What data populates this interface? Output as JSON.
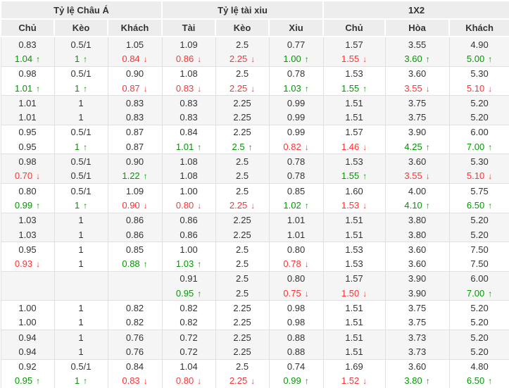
{
  "colors": {
    "up_green": "#009900",
    "down_red": "#ff3333",
    "header_bg": "#ededed",
    "row_alt_bg": "#f5f5f5",
    "border": "#e0e0e0",
    "text": "#333333"
  },
  "table": {
    "groups": [
      {
        "label": "Tỷ lệ Châu Á",
        "columns": [
          "Chủ",
          "Kèo",
          "Khách"
        ]
      },
      {
        "label": "Tỷ lệ tài xiu",
        "columns": [
          "Tài",
          "Kèo",
          "Xiu"
        ]
      },
      {
        "label": "1X2",
        "columns": [
          "Chủ",
          "Hòa",
          "Khách"
        ]
      }
    ],
    "rows": [
      {
        "line1": [
          {
            "v": "0.83"
          },
          {
            "v": "0.5/1"
          },
          {
            "v": "1.05"
          },
          {
            "v": "1.09"
          },
          {
            "v": "2.5"
          },
          {
            "v": "0.77"
          },
          {
            "v": "1.57"
          },
          {
            "v": "3.55"
          },
          {
            "v": "4.90"
          }
        ],
        "line2": [
          {
            "v": "1.04",
            "t": "up"
          },
          {
            "v": "1",
            "t": "up"
          },
          {
            "v": "0.84",
            "t": "down"
          },
          {
            "v": "0.86",
            "t": "down"
          },
          {
            "v": "2.25",
            "t": "down"
          },
          {
            "v": "1.00",
            "t": "up"
          },
          {
            "v": "1.55",
            "t": "down"
          },
          {
            "v": "3.60",
            "t": "up"
          },
          {
            "v": "5.00",
            "t": "up"
          }
        ]
      },
      {
        "line1": [
          {
            "v": "0.98"
          },
          {
            "v": "0.5/1"
          },
          {
            "v": "0.90"
          },
          {
            "v": "1.08"
          },
          {
            "v": "2.5"
          },
          {
            "v": "0.78"
          },
          {
            "v": "1.53"
          },
          {
            "v": "3.60"
          },
          {
            "v": "5.30"
          }
        ],
        "line2": [
          {
            "v": "1.01",
            "t": "up"
          },
          {
            "v": "1",
            "t": "up"
          },
          {
            "v": "0.87",
            "t": "down"
          },
          {
            "v": "0.83",
            "t": "down"
          },
          {
            "v": "2.25",
            "t": "down"
          },
          {
            "v": "1.03",
            "t": "up"
          },
          {
            "v": "1.55",
            "t": "up"
          },
          {
            "v": "3.55",
            "t": "down"
          },
          {
            "v": "5.10",
            "t": "down"
          }
        ]
      },
      {
        "line1": [
          {
            "v": "1.01"
          },
          {
            "v": "1"
          },
          {
            "v": "0.83"
          },
          {
            "v": "0.83"
          },
          {
            "v": "2.25"
          },
          {
            "v": "0.99"
          },
          {
            "v": "1.51"
          },
          {
            "v": "3.75"
          },
          {
            "v": "5.20"
          }
        ],
        "line2": [
          {
            "v": "1.01"
          },
          {
            "v": "1"
          },
          {
            "v": "0.83"
          },
          {
            "v": "0.83"
          },
          {
            "v": "2.25"
          },
          {
            "v": "0.99"
          },
          {
            "v": "1.51"
          },
          {
            "v": "3.75"
          },
          {
            "v": "5.20"
          }
        ]
      },
      {
        "line1": [
          {
            "v": "0.95"
          },
          {
            "v": "0.5/1"
          },
          {
            "v": "0.87"
          },
          {
            "v": "0.84"
          },
          {
            "v": "2.25"
          },
          {
            "v": "0.99"
          },
          {
            "v": "1.57"
          },
          {
            "v": "3.90"
          },
          {
            "v": "6.00"
          }
        ],
        "line2": [
          {
            "v": "0.95"
          },
          {
            "v": "1",
            "t": "up"
          },
          {
            "v": "0.87"
          },
          {
            "v": "1.01",
            "t": "up"
          },
          {
            "v": "2.5",
            "t": "up"
          },
          {
            "v": "0.82",
            "t": "down"
          },
          {
            "v": "1.46",
            "t": "down"
          },
          {
            "v": "4.25",
            "t": "up"
          },
          {
            "v": "7.00",
            "t": "up"
          }
        ]
      },
      {
        "line1": [
          {
            "v": "0.98"
          },
          {
            "v": "0.5/1"
          },
          {
            "v": "0.90"
          },
          {
            "v": "1.08"
          },
          {
            "v": "2.5"
          },
          {
            "v": "0.78"
          },
          {
            "v": "1.53"
          },
          {
            "v": "3.60"
          },
          {
            "v": "5.30"
          }
        ],
        "line2": [
          {
            "v": "0.70",
            "t": "down"
          },
          {
            "v": "0.5/1"
          },
          {
            "v": "1.22",
            "t": "up"
          },
          {
            "v": "1.08"
          },
          {
            "v": "2.5"
          },
          {
            "v": "0.78"
          },
          {
            "v": "1.55",
            "t": "up"
          },
          {
            "v": "3.55",
            "t": "down"
          },
          {
            "v": "5.10",
            "t": "down"
          }
        ]
      },
      {
        "line1": [
          {
            "v": "0.80"
          },
          {
            "v": "0.5/1"
          },
          {
            "v": "1.09"
          },
          {
            "v": "1.00"
          },
          {
            "v": "2.5"
          },
          {
            "v": "0.85"
          },
          {
            "v": "1.60"
          },
          {
            "v": "4.00"
          },
          {
            "v": "5.75"
          }
        ],
        "line2": [
          {
            "v": "0.99",
            "t": "up"
          },
          {
            "v": "1",
            "t": "up"
          },
          {
            "v": "0.90",
            "t": "down"
          },
          {
            "v": "0.80",
            "t": "down"
          },
          {
            "v": "2.25",
            "t": "down"
          },
          {
            "v": "1.02",
            "t": "up"
          },
          {
            "v": "1.53",
            "t": "down"
          },
          {
            "v": "4.10",
            "t": "up"
          },
          {
            "v": "6.50",
            "t": "up"
          }
        ]
      },
      {
        "line1": [
          {
            "v": "1.03"
          },
          {
            "v": "1"
          },
          {
            "v": "0.86"
          },
          {
            "v": "0.86"
          },
          {
            "v": "2.25"
          },
          {
            "v": "1.01"
          },
          {
            "v": "1.51"
          },
          {
            "v": "3.80"
          },
          {
            "v": "5.20"
          }
        ],
        "line2": [
          {
            "v": "1.03"
          },
          {
            "v": "1"
          },
          {
            "v": "0.86"
          },
          {
            "v": "0.86"
          },
          {
            "v": "2.25"
          },
          {
            "v": "1.01"
          },
          {
            "v": "1.51"
          },
          {
            "v": "3.80"
          },
          {
            "v": "5.20"
          }
        ]
      },
      {
        "line1": [
          {
            "v": "0.95"
          },
          {
            "v": "1"
          },
          {
            "v": "0.85"
          },
          {
            "v": "1.00"
          },
          {
            "v": "2.5"
          },
          {
            "v": "0.80"
          },
          {
            "v": "1.53"
          },
          {
            "v": "3.60"
          },
          {
            "v": "7.50"
          }
        ],
        "line2": [
          {
            "v": "0.93",
            "t": "down"
          },
          {
            "v": "1"
          },
          {
            "v": "0.88",
            "t": "up"
          },
          {
            "v": "1.03",
            "t": "up"
          },
          {
            "v": "2.5"
          },
          {
            "v": "0.78",
            "t": "down"
          },
          {
            "v": "1.53"
          },
          {
            "v": "3.60"
          },
          {
            "v": "7.50"
          }
        ]
      },
      {
        "line1": [
          {
            "v": ""
          },
          {
            "v": ""
          },
          {
            "v": ""
          },
          {
            "v": "0.91"
          },
          {
            "v": "2.5"
          },
          {
            "v": "0.80"
          },
          {
            "v": "1.57"
          },
          {
            "v": "3.90"
          },
          {
            "v": "6.00"
          }
        ],
        "line2": [
          {
            "v": ""
          },
          {
            "v": ""
          },
          {
            "v": ""
          },
          {
            "v": "0.95",
            "t": "up"
          },
          {
            "v": "2.5"
          },
          {
            "v": "0.75",
            "t": "down"
          },
          {
            "v": "1.50",
            "t": "down"
          },
          {
            "v": "3.90"
          },
          {
            "v": "7.00",
            "t": "up"
          }
        ]
      },
      {
        "line1": [
          {
            "v": "1.00"
          },
          {
            "v": "1"
          },
          {
            "v": "0.82"
          },
          {
            "v": "0.82"
          },
          {
            "v": "2.25"
          },
          {
            "v": "0.98"
          },
          {
            "v": "1.51"
          },
          {
            "v": "3.75"
          },
          {
            "v": "5.20"
          }
        ],
        "line2": [
          {
            "v": "1.00"
          },
          {
            "v": "1"
          },
          {
            "v": "0.82"
          },
          {
            "v": "0.82"
          },
          {
            "v": "2.25"
          },
          {
            "v": "0.98"
          },
          {
            "v": "1.51"
          },
          {
            "v": "3.75"
          },
          {
            "v": "5.20"
          }
        ]
      },
      {
        "line1": [
          {
            "v": "0.94"
          },
          {
            "v": "1"
          },
          {
            "v": "0.76"
          },
          {
            "v": "0.72"
          },
          {
            "v": "2.25"
          },
          {
            "v": "0.88"
          },
          {
            "v": "1.51"
          },
          {
            "v": "3.73"
          },
          {
            "v": "5.20"
          }
        ],
        "line2": [
          {
            "v": "0.94"
          },
          {
            "v": "1"
          },
          {
            "v": "0.76"
          },
          {
            "v": "0.72"
          },
          {
            "v": "2.25"
          },
          {
            "v": "0.88"
          },
          {
            "v": "1.51"
          },
          {
            "v": "3.73"
          },
          {
            "v": "5.20"
          }
        ]
      },
      {
        "line1": [
          {
            "v": "0.92"
          },
          {
            "v": "0.5/1"
          },
          {
            "v": "0.84"
          },
          {
            "v": "1.04"
          },
          {
            "v": "2.5"
          },
          {
            "v": "0.74"
          },
          {
            "v": "1.69"
          },
          {
            "v": "3.60"
          },
          {
            "v": "4.80"
          }
        ],
        "line2": [
          {
            "v": "0.95",
            "t": "up"
          },
          {
            "v": "1",
            "t": "up"
          },
          {
            "v": "0.83",
            "t": "down"
          },
          {
            "v": "0.80",
            "t": "down"
          },
          {
            "v": "2.25",
            "t": "down"
          },
          {
            "v": "0.99",
            "t": "up"
          },
          {
            "v": "1.52",
            "t": "down"
          },
          {
            "v": "3.80",
            "t": "up"
          },
          {
            "v": "6.50",
            "t": "up"
          }
        ]
      }
    ]
  }
}
